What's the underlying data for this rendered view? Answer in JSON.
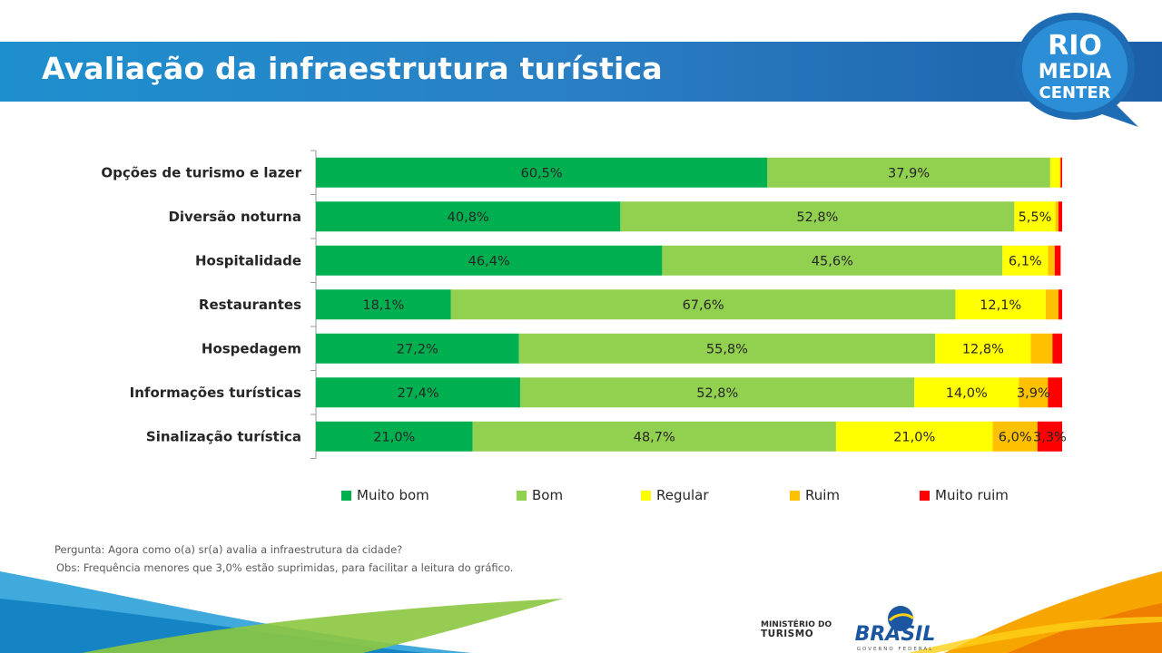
{
  "header": {
    "title": "Avaliação da infraestrutura turística"
  },
  "logo": {
    "line1": "RIO",
    "line2": "MEDIA",
    "line3": "CENTER"
  },
  "chart_data": {
    "type": "bar",
    "orientation": "horizontal",
    "stacked": true,
    "categories": [
      "Opções de turismo e lazer",
      "Diversão noturna",
      "Hospitalidade",
      "Restaurantes",
      "Hospedagem",
      "Informações turísticas",
      "Sinalização turística"
    ],
    "series": [
      {
        "name": "Muito bom",
        "color": "#00b050",
        "values": [
          60.5,
          40.8,
          46.4,
          18.1,
          27.2,
          27.4,
          21.0
        ],
        "labels": [
          "60,5%",
          "40,8%",
          "46,4%",
          "18,1%",
          "27,2%",
          "27,4%",
          "21,0%"
        ]
      },
      {
        "name": "Bom",
        "color": "#92d050",
        "values": [
          37.9,
          52.8,
          45.6,
          67.6,
          55.8,
          52.8,
          48.7
        ],
        "labels": [
          "37,9%",
          "52,8%",
          "45,6%",
          "67,6%",
          "55,8%",
          "52,8%",
          "48,7%"
        ]
      },
      {
        "name": "Regular",
        "color": "#ffff00",
        "values": [
          1.3,
          5.5,
          6.1,
          12.1,
          12.8,
          14.0,
          21.0
        ],
        "labels": [
          "",
          "5,5%",
          "6,1%",
          "12,1%",
          "12,8%",
          "14,0%",
          "21,0%"
        ]
      },
      {
        "name": "Ruim",
        "color": "#ffc000",
        "values": [
          0.1,
          0.4,
          0.9,
          1.7,
          2.9,
          3.9,
          6.0
        ],
        "labels": [
          "",
          "",
          "",
          "",
          "",
          "3,9%",
          "6,0%"
        ]
      },
      {
        "name": "Muito ruim",
        "color": "#ff0000",
        "values": [
          0.2,
          0.5,
          0.8,
          0.5,
          1.3,
          1.9,
          3.3
        ],
        "labels": [
          "",
          "",
          "",
          "",
          "",
          "",
          "3,3%"
        ]
      }
    ],
    "xlim": [
      0,
      100
    ],
    "legend_position": "bottom",
    "grid": false
  },
  "notes": {
    "question": "Pergunta: Agora como o(a) sr(a) avalia a infraestrutura da cidade?",
    "obs": "Obs: Frequência menores que 3,0% estão suprimidas, para facilitar a leitura do gráfico."
  },
  "footer": {
    "ministry_line1": "MINISTÉRIO DO",
    "ministry_line2": "TURISMO",
    "brand": "BRASIL",
    "brand_sub": "GOVERNO FEDERAL"
  }
}
